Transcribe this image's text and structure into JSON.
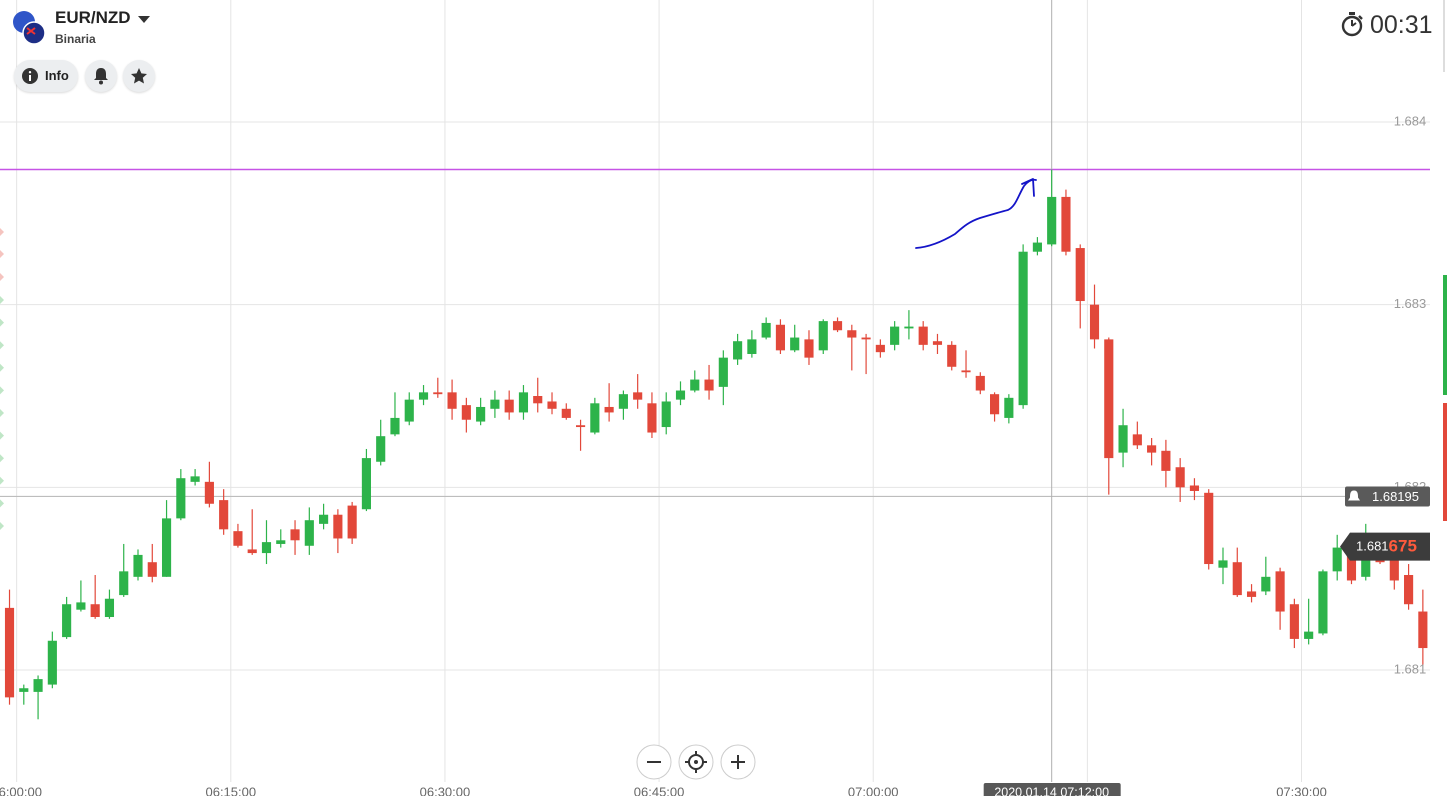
{
  "header": {
    "asset": "EUR/NZD",
    "platform": "Binaria",
    "info_button": "Info",
    "timer": "00:31"
  },
  "chart_data": {
    "type": "candlestick",
    "x": [
      "05:59:00",
      "06:00:00",
      "06:01:00",
      "06:02:00",
      "06:03:00",
      "06:04:00",
      "06:05:00",
      "06:06:00",
      "06:07:00",
      "06:08:00",
      "06:09:00",
      "06:10:00",
      "06:11:00",
      "06:12:00",
      "06:13:00",
      "06:14:00",
      "06:15:00",
      "06:16:00",
      "06:17:00",
      "06:18:00",
      "06:19:00",
      "06:20:00",
      "06:21:00",
      "06:22:00",
      "06:23:00",
      "06:24:00",
      "06:25:00",
      "06:26:00",
      "06:27:00",
      "06:28:00",
      "06:29:00",
      "06:30:00",
      "06:31:00",
      "06:32:00",
      "06:33:00",
      "06:34:00",
      "06:35:00",
      "06:36:00",
      "06:37:00",
      "06:38:00",
      "06:39:00",
      "06:40:00",
      "06:41:00",
      "06:42:00",
      "06:43:00",
      "06:44:00",
      "06:45:00",
      "06:46:00",
      "06:47:00",
      "06:48:00",
      "06:49:00",
      "06:50:00",
      "06:51:00",
      "06:52:00",
      "06:53:00",
      "06:54:00",
      "06:55:00",
      "06:56:00",
      "06:57:00",
      "06:58:00",
      "06:59:00",
      "07:00:00",
      "07:01:00",
      "07:02:00",
      "07:03:00",
      "07:04:00",
      "07:05:00",
      "07:06:00",
      "07:07:00",
      "07:08:00",
      "07:09:00",
      "07:10:00",
      "07:11:00",
      "07:12:00",
      "07:13:00",
      "07:14:00",
      "07:15:00",
      "07:16:00",
      "07:17:00",
      "07:18:00",
      "07:19:00",
      "07:20:00",
      "07:21:00",
      "07:22:00",
      "07:23:00",
      "07:24:00",
      "07:25:00",
      "07:26:00",
      "07:27:00",
      "07:28:00",
      "07:29:00",
      "07:30:00",
      "07:31:00",
      "07:32:00",
      "07:33:00",
      "07:34:00",
      "07:35:00",
      "07:36:00",
      "07:37:00",
      "07:38:00"
    ],
    "open": [
      1.68134,
      1.68088,
      1.68088,
      1.68092,
      1.68118,
      1.68133,
      1.68136,
      1.68129,
      1.68141,
      1.68151,
      1.68159,
      1.68151,
      1.68183,
      1.68203,
      1.68203,
      1.68193,
      1.68176,
      1.68166,
      1.68164,
      1.68169,
      1.68177,
      1.68168,
      1.6818,
      1.68185,
      1.6819,
      1.68188,
      1.68214,
      1.68229,
      1.68236,
      1.68248,
      1.68252,
      1.68252,
      1.68245,
      1.68236,
      1.68243,
      1.68248,
      1.68241,
      1.6825,
      1.68247,
      1.68243,
      1.68234,
      1.6823,
      1.68244,
      1.68243,
      1.68252,
      1.68246,
      1.68233,
      1.68248,
      1.68253,
      1.68259,
      1.68255,
      1.6827,
      1.68273,
      1.68282,
      1.68289,
      1.68275,
      1.68281,
      1.68275,
      1.68291,
      1.68286,
      1.68282,
      1.68278,
      1.68278,
      1.68287,
      1.68288,
      1.6828,
      1.68278,
      1.68264,
      1.68261,
      1.68251,
      1.68238,
      1.68245,
      1.68329,
      1.68333,
      1.68359,
      1.68331,
      1.683,
      1.68281,
      1.68219,
      1.68229,
      1.68223,
      1.6822,
      1.68211,
      1.68201,
      1.68197,
      1.68156,
      1.68159,
      1.68143,
      1.68143,
      1.68154,
      1.68136,
      1.68117,
      1.6812,
      1.68154,
      1.68167,
      1.68151,
      1.68165,
      1.68163,
      1.68152,
      1.68132
    ],
    "high": [
      1.68144,
      1.68092,
      1.68097,
      1.68121,
      1.6814,
      1.68149,
      1.68152,
      1.68144,
      1.68169,
      1.68166,
      1.68169,
      1.68193,
      1.6821,
      1.6821,
      1.68214,
      1.68199,
      1.6818,
      1.68188,
      1.68182,
      1.68177,
      1.68182,
      1.68189,
      1.68191,
      1.68188,
      1.68192,
      1.68221,
      1.68237,
      1.68252,
      1.68252,
      1.68256,
      1.6826,
      1.68259,
      1.68249,
      1.68249,
      1.68253,
      1.68253,
      1.68256,
      1.6826,
      1.68252,
      1.68246,
      1.68237,
      1.68249,
      1.68257,
      1.68253,
      1.68262,
      1.68252,
      1.68252,
      1.68258,
      1.68264,
      1.68267,
      1.68275,
      1.68284,
      1.68286,
      1.68293,
      1.68292,
      1.68289,
      1.68286,
      1.68292,
      1.68293,
      1.68289,
      1.68284,
      1.68281,
      1.68291,
      1.68297,
      1.68291,
      1.68284,
      1.6828,
      1.68275,
      1.68263,
      1.68252,
      1.68251,
      1.68333,
      1.68337,
      1.68374,
      1.68363,
      1.68333,
      1.68311,
      1.68282,
      1.68243,
      1.68236,
      1.68227,
      1.68226,
      1.68216,
      1.68205,
      1.68199,
      1.68167,
      1.68167,
      1.68147,
      1.68162,
      1.68156,
      1.68139,
      1.68139,
      1.68155,
      1.68174,
      1.68171,
      1.6818,
      1.68171,
      1.68167,
      1.68158,
      1.68144
    ],
    "low": [
      1.68081,
      1.68081,
      1.68073,
      1.6809,
      1.68117,
      1.68132,
      1.68128,
      1.68128,
      1.6814,
      1.68149,
      1.68148,
      1.68151,
      1.68182,
      1.68201,
      1.68189,
      1.68174,
      1.68167,
      1.68163,
      1.68158,
      1.68167,
      1.68163,
      1.68163,
      1.68177,
      1.68164,
      1.68169,
      1.68187,
      1.68212,
      1.68228,
      1.68234,
      1.68245,
      1.68249,
      1.68237,
      1.6823,
      1.68234,
      1.68238,
      1.68237,
      1.68237,
      1.68241,
      1.6824,
      1.68237,
      1.6822,
      1.68229,
      1.68236,
      1.68237,
      1.68243,
      1.68227,
      1.68229,
      1.68245,
      1.68252,
      1.68248,
      1.68245,
      1.68267,
      1.68271,
      1.68281,
      1.68273,
      1.68274,
      1.68267,
      1.68273,
      1.68285,
      1.68264,
      1.68262,
      1.68271,
      1.68275,
      1.68281,
      1.68275,
      1.68273,
      1.68264,
      1.6826,
      1.68251,
      1.68236,
      1.68235,
      1.68243,
      1.68327,
      1.68332,
      1.68327,
      1.68287,
      1.68276,
      1.68196,
      1.68211,
      1.68221,
      1.68212,
      1.682,
      1.68192,
      1.68193,
      1.68155,
      1.68147,
      1.6814,
      1.68137,
      1.68141,
      1.68122,
      1.68112,
      1.68114,
      1.68119,
      1.68149,
      1.68147,
      1.68149,
      1.68158,
      1.68144,
      1.68133,
      1.68103
    ],
    "close": [
      1.68085,
      1.6809,
      1.68095,
      1.68116,
      1.68136,
      1.68137,
      1.68129,
      1.68139,
      1.68154,
      1.68163,
      1.68151,
      1.68183,
      1.68205,
      1.68206,
      1.68191,
      1.68177,
      1.68168,
      1.68164,
      1.6817,
      1.68171,
      1.68171,
      1.68182,
      1.68185,
      1.68172,
      1.68172,
      1.68216,
      1.68228,
      1.68238,
      1.68248,
      1.68252,
      1.68251,
      1.68243,
      1.68237,
      1.68244,
      1.68248,
      1.68241,
      1.68252,
      1.68246,
      1.68243,
      1.68238,
      1.68233,
      1.68246,
      1.68241,
      1.68251,
      1.68248,
      1.6823,
      1.68247,
      1.68253,
      1.68259,
      1.68253,
      1.68271,
      1.6828,
      1.68281,
      1.6829,
      1.68275,
      1.68282,
      1.68271,
      1.68291,
      1.68286,
      1.68282,
      1.68281,
      1.68274,
      1.68288,
      1.68288,
      1.68278,
      1.68278,
      1.68266,
      1.68263,
      1.68253,
      1.6824,
      1.68249,
      1.68329,
      1.68334,
      1.68359,
      1.68329,
      1.68302,
      1.68281,
      1.68216,
      1.68234,
      1.68223,
      1.68219,
      1.68209,
      1.682,
      1.68198,
      1.68158,
      1.6816,
      1.68141,
      1.6814,
      1.68151,
      1.68132,
      1.68117,
      1.68121,
      1.68154,
      1.68167,
      1.68149,
      1.68167,
      1.68159,
      1.68149,
      1.68136,
      1.68112
    ],
    "colors": {
      "up": "#2db34a",
      "down": "#e2483a"
    },
    "xlim": [
      "05:58:50",
      "07:39:00"
    ],
    "xticks": [
      "06:00:00",
      "06:15:00",
      "06:30:00",
      "06:45:00",
      "07:00:00",
      "07:15:00",
      "07:30:00"
    ],
    "ylim": [
      1.6805,
      1.6845
    ],
    "yticks": [
      1.681,
      1.682,
      1.683,
      1.684
    ],
    "grid": true,
    "alert_level": 1.68195,
    "high_level": 1.68374,
    "high_level_color": "#c653e6",
    "current_price": 1.681675,
    "current_price_label": {
      "main": "1.681",
      "pips": "675"
    },
    "cursor": {
      "x": "07:12:00",
      "label": "2020.01.14 07:12:00"
    }
  }
}
